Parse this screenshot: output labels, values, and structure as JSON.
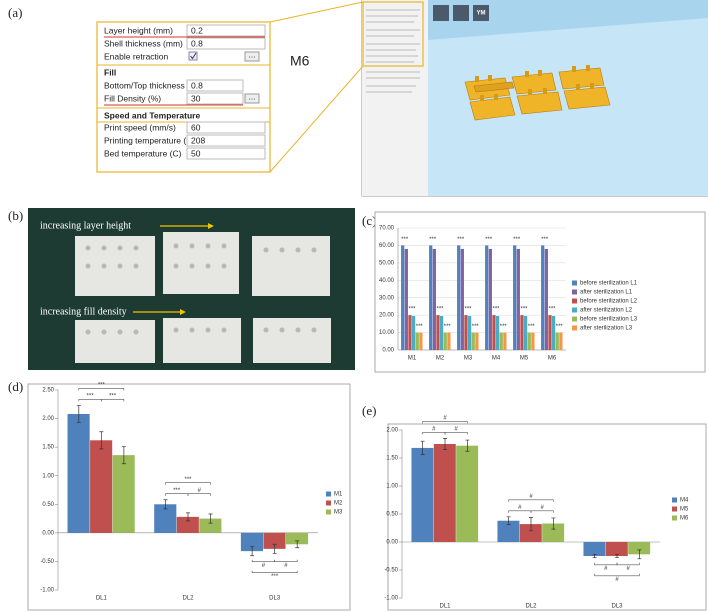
{
  "panel_labels": [
    "(a)",
    "(b)",
    "(c)",
    "(d)",
    "(e)"
  ],
  "settings": {
    "general": [
      {
        "label": "Layer height (mm)",
        "value": 0.2
      },
      {
        "label": "Shell thickness (mm)",
        "value": 0.8
      },
      {
        "label": "Enable retraction",
        "button": "..."
      }
    ],
    "fill_title": "Fill",
    "fill": [
      {
        "label": "Bottom/Top thickness (mm)",
        "value": 0.8
      },
      {
        "label": "Fill Density (%)",
        "value": 30,
        "button": "..."
      }
    ],
    "speed_title": "Speed and Temperature",
    "speed": [
      {
        "label": "Print speed (mm/s)",
        "value": 60
      },
      {
        "label": "Printing temperature (C)",
        "value": 208
      },
      {
        "label": "Bed temperature (C)",
        "value": 50
      }
    ],
    "model": "M6"
  },
  "slicer": {
    "button": "YM"
  },
  "photo": {
    "top_caption": "increasing layer height",
    "bottom_caption": "increasing fill density"
  },
  "chart_data": [
    {
      "type": "bar",
      "categories": [
        "M1",
        "M2",
        "M3",
        "M4",
        "M5",
        "M6"
      ],
      "series": [
        {
          "name": "before sterilization L1",
          "color": "#4f81bd",
          "values": [
            60,
            60,
            60,
            60,
            60,
            60
          ]
        },
        {
          "name": "after sterilization L1",
          "color": "#8064a2",
          "values": [
            58,
            58,
            58,
            58,
            58,
            58
          ]
        },
        {
          "name": "before sterilization L2",
          "color": "#c0504d",
          "values": [
            20,
            20,
            20,
            20,
            20,
            20
          ]
        },
        {
          "name": "after sterilization L2",
          "color": "#4bacc6",
          "values": [
            19.5,
            19.5,
            19.5,
            19.5,
            19.5,
            19.5
          ]
        },
        {
          "name": "before sterilization L3",
          "color": "#9bbb59",
          "values": [
            10,
            10,
            10,
            10,
            10,
            10
          ]
        },
        {
          "name": "after sterilization L3",
          "color": "#f79646",
          "values": [
            10,
            10,
            10,
            10,
            10,
            10
          ]
        }
      ],
      "annotations": [
        [
          "***",
          "***",
          "***"
        ],
        [
          "***",
          "***",
          "***"
        ],
        [
          "***",
          "***",
          "***"
        ],
        [
          "***",
          "***",
          "***"
        ],
        [
          "***",
          "***",
          "***"
        ],
        [
          "***",
          "***",
          "***"
        ]
      ],
      "ylim": [
        0,
        70
      ],
      "yticks": [
        {
          "value": 0,
          "label": "0.00"
        },
        {
          "value": 10,
          "label": "10.00"
        },
        {
          "value": 20,
          "label": "20.00"
        },
        {
          "value": 30,
          "label": "30.00"
        },
        {
          "value": 40,
          "label": "40.00"
        },
        {
          "value": 50,
          "label": "50.00"
        },
        {
          "value": 60,
          "label": "60.00"
        },
        {
          "value": 70,
          "label": "70.00"
        }
      ],
      "grid": true,
      "legend": "right"
    },
    {
      "type": "bar",
      "categories": [
        "DL1",
        "DL2",
        "DL3"
      ],
      "series": [
        {
          "name": "M1",
          "color": "#4f81bd",
          "values": [
            2.08,
            0.5,
            -0.32
          ],
          "errors": [
            0.15,
            0.08,
            0.08
          ]
        },
        {
          "name": "M2",
          "color": "#c0504d",
          "values": [
            1.62,
            0.28,
            -0.28
          ],
          "errors": [
            0.15,
            0.07,
            0.08
          ]
        },
        {
          "name": "M3",
          "color": "#9bbb59",
          "values": [
            1.36,
            0.25,
            -0.2
          ],
          "errors": [
            0.15,
            0.08,
            0.06
          ]
        }
      ],
      "annotations": [
        [
          "***",
          "***",
          "***"
        ],
        [
          "***",
          "#",
          "***"
        ],
        [
          "#",
          "#",
          "***"
        ]
      ],
      "ylim": [
        -1,
        2.5
      ],
      "yticks": [
        {
          "value": -1,
          "label": "-1.00"
        },
        {
          "value": -0.5,
          "label": "-0.50"
        },
        {
          "value": 0,
          "label": "0.00"
        },
        {
          "value": 0.5,
          "label": "0.50"
        },
        {
          "value": 1,
          "label": "1.00"
        },
        {
          "value": 1.5,
          "label": "1.50"
        },
        {
          "value": 2,
          "label": "2.00"
        },
        {
          "value": 2.5,
          "label": "2.50"
        }
      ],
      "grid": false,
      "legend": "right"
    },
    {
      "type": "bar",
      "categories": [
        "DL1",
        "DL2",
        "DL3"
      ],
      "series": [
        {
          "name": "M4",
          "color": "#4f81bd",
          "values": [
            1.68,
            0.38,
            -0.25
          ],
          "errors": [
            0.12,
            0.07,
            0.03
          ]
        },
        {
          "name": "M5",
          "color": "#c0504d",
          "values": [
            1.75,
            0.32,
            -0.25
          ],
          "errors": [
            0.1,
            0.12,
            0.03
          ]
        },
        {
          "name": "M6",
          "color": "#9bbb59",
          "values": [
            1.72,
            0.33,
            -0.22
          ],
          "errors": [
            0.1,
            0.1,
            0.08
          ]
        }
      ],
      "annotations": [
        [
          "#",
          "#",
          "#"
        ],
        [
          "#",
          "#",
          "#"
        ],
        [
          "#",
          "#",
          "#"
        ]
      ],
      "ylim": [
        -1,
        2
      ],
      "yticks": [
        {
          "value": -1,
          "label": "-1.00"
        },
        {
          "value": -0.5,
          "label": "-0.50"
        },
        {
          "value": 0,
          "label": "0.00"
        },
        {
          "value": 0.5,
          "label": "0.50"
        },
        {
          "value": 1,
          "label": "1.00"
        },
        {
          "value": 1.5,
          "label": "1.50"
        },
        {
          "value": 2,
          "label": "2.00"
        }
      ],
      "grid": false,
      "legend": "right"
    }
  ]
}
